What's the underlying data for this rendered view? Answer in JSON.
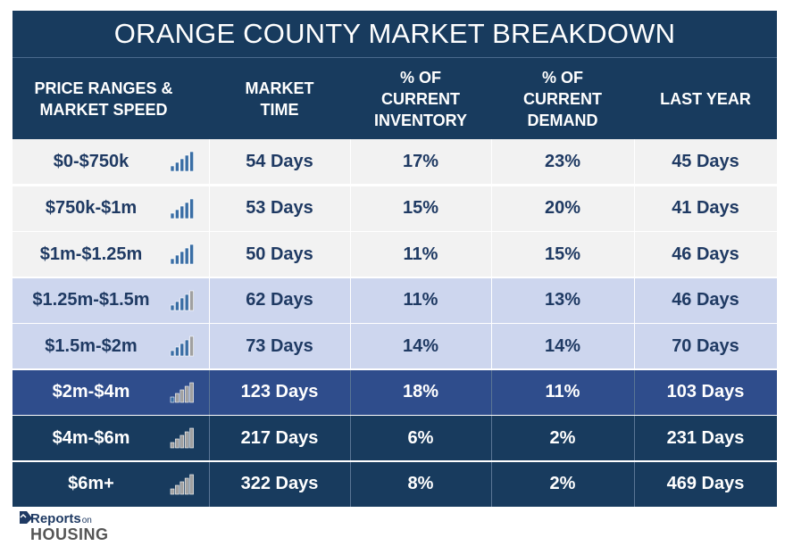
{
  "title": "ORANGE COUNTY MARKET BREAKDOWN",
  "headers": [
    "PRICE RANGES &\nMARKET SPEED",
    "MARKET\nTIME",
    "% OF\nCURRENT\nINVENTORY",
    "% OF\nCURRENT\nDEMAND",
    "LAST YEAR"
  ],
  "colors": {
    "header_bg": "#183b5e",
    "tier_light_bg": "#f2f2f2",
    "tier_mid_bg": "#cdd6ee",
    "tier_upper_bg": "#2f4d8c",
    "tier_luxury_bg": "#183b5e",
    "dark_text": "#1f3a63",
    "light_text": "#ffffff",
    "bar_blue": "#3a6ea5",
    "bar_gray": "#a0a0a0"
  },
  "rows": [
    {
      "range": "$0-$750k",
      "market_time": "54 Days",
      "inventory": "17%",
      "demand": "23%",
      "last_year": "45 Days",
      "speed_bars": 5,
      "tier": "light"
    },
    {
      "range": "$750k-$1m",
      "market_time": "53 Days",
      "inventory": "15%",
      "demand": "20%",
      "last_year": "41 Days",
      "speed_bars": 5,
      "tier": "light"
    },
    {
      "range": "$1m-$1.25m",
      "market_time": "50 Days",
      "inventory": "11%",
      "demand": "15%",
      "last_year": "46 Days",
      "speed_bars": 5,
      "tier": "light"
    },
    {
      "range": "$1.25m-$1.5m",
      "market_time": "62 Days",
      "inventory": "11%",
      "demand": "13%",
      "last_year": "46 Days",
      "speed_bars": 4,
      "tier": "mid"
    },
    {
      "range": "$1.5m-$2m",
      "market_time": "73 Days",
      "inventory": "14%",
      "demand": "14%",
      "last_year": "70 Days",
      "speed_bars": 4,
      "tier": "mid"
    },
    {
      "range": "$2m-$4m",
      "market_time": "123 Days",
      "inventory": "18%",
      "demand": "11%",
      "last_year": "103 Days",
      "speed_bars": 1,
      "tier": "upper"
    },
    {
      "range": "$4m-$6m",
      "market_time": "217 Days",
      "inventory": "6%",
      "demand": "2%",
      "last_year": "231 Days",
      "speed_bars": 0,
      "tier": "luxury"
    },
    {
      "range": "$6m+",
      "market_time": "322 Days",
      "inventory": "8%",
      "demand": "2%",
      "last_year": "469 Days",
      "speed_bars": 0,
      "tier": "luxury"
    }
  ],
  "logo": {
    "line1_main": "Reports",
    "line1_small": "on",
    "line2": "HOUSING"
  },
  "chart_data": {
    "type": "table",
    "title": "ORANGE COUNTY MARKET BREAKDOWN",
    "columns": [
      "PRICE RANGES & MARKET SPEED",
      "MARKET TIME",
      "% OF CURRENT INVENTORY",
      "% OF CURRENT DEMAND",
      "LAST YEAR"
    ],
    "rows": [
      [
        "$0-$750k",
        "54 Days",
        "17%",
        "23%",
        "45 Days"
      ],
      [
        "$750k-$1m",
        "53 Days",
        "15%",
        "20%",
        "41 Days"
      ],
      [
        "$1m-$1.25m",
        "50 Days",
        "11%",
        "15%",
        "46 Days"
      ],
      [
        "$1.25m-$1.5m",
        "62 Days",
        "11%",
        "13%",
        "46 Days"
      ],
      [
        "$1.5m-$2m",
        "73 Days",
        "14%",
        "14%",
        "70 Days"
      ],
      [
        "$2m-$4m",
        "123 Days",
        "18%",
        "11%",
        "103 Days"
      ],
      [
        "$4m-$6m",
        "217 Days",
        "6%",
        "2%",
        "231 Days"
      ],
      [
        "$6m+",
        "322 Days",
        "8%",
        "2%",
        "469 Days"
      ]
    ]
  }
}
